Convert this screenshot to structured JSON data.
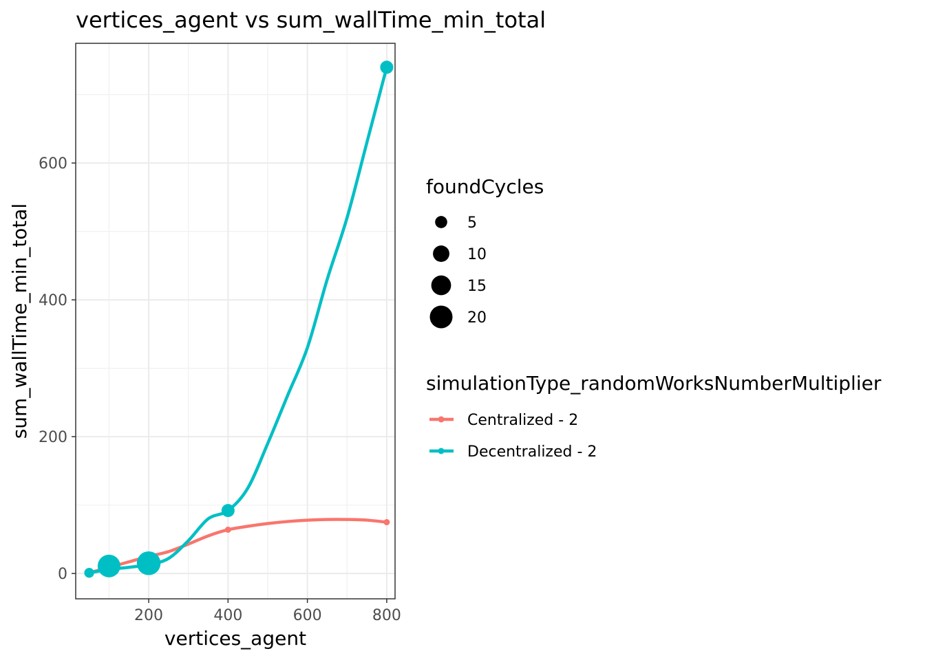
{
  "chart_data": {
    "type": "scatter",
    "title": "vertices_agent  vs  sum_wallTime_min_total",
    "xlabel": "vertices_agent",
    "ylabel": "sum_wallTime_min_total",
    "xlim": [
      16,
      821
    ],
    "ylim": [
      -37,
      775
    ],
    "x_ticks": [
      200,
      400,
      600,
      800
    ],
    "y_ticks": [
      0,
      200,
      400,
      600
    ],
    "grid": true,
    "legend_position": "right",
    "size_legend": {
      "title": "foundCycles",
      "entries": [
        {
          "label": "5",
          "value": 5
        },
        {
          "label": "10",
          "value": 10
        },
        {
          "label": "15",
          "value": 15
        },
        {
          "label": "20",
          "value": 20
        }
      ]
    },
    "color_legend": {
      "title": "simulationType_randomWorksNumberMultiplier",
      "entries": [
        "Centralized - 2",
        "Decentralized - 2"
      ]
    },
    "series": [
      {
        "name": "Centralized - 2",
        "color": "#F8766D",
        "points": [
          {
            "x": 50,
            "y": 1,
            "size": 0
          },
          {
            "x": 100,
            "y": 12,
            "size": 0
          },
          {
            "x": 200,
            "y": 24,
            "size": 0
          },
          {
            "x": 400,
            "y": 64,
            "size": 0
          },
          {
            "x": 800,
            "y": 75,
            "size": 0
          }
        ],
        "smooth": [
          [
            50,
            1
          ],
          [
            100,
            9
          ],
          [
            150,
            17
          ],
          [
            200,
            25
          ],
          [
            250,
            32
          ],
          [
            300,
            43
          ],
          [
            350,
            55
          ],
          [
            400,
            64
          ],
          [
            450,
            69
          ],
          [
            500,
            73
          ],
          [
            550,
            76
          ],
          [
            600,
            78
          ],
          [
            650,
            79
          ],
          [
            700,
            79
          ],
          [
            750,
            78
          ],
          [
            800,
            75
          ]
        ]
      },
      {
        "name": "Decentralized - 2",
        "color": "#00BFC4",
        "points": [
          {
            "x": 50,
            "y": 1,
            "size": 3
          },
          {
            "x": 100,
            "y": 11,
            "size": 20
          },
          {
            "x": 200,
            "y": 15,
            "size": 22
          },
          {
            "x": 400,
            "y": 92,
            "size": 6
          },
          {
            "x": 800,
            "y": 740,
            "size": 6
          }
        ],
        "smooth": [
          [
            50,
            1
          ],
          [
            100,
            6
          ],
          [
            150,
            9
          ],
          [
            200,
            13
          ],
          [
            250,
            22
          ],
          [
            300,
            48
          ],
          [
            350,
            80
          ],
          [
            400,
            92
          ],
          [
            450,
            125
          ],
          [
            500,
            190
          ],
          [
            550,
            260
          ],
          [
            600,
            330
          ],
          [
            650,
            430
          ],
          [
            700,
            520
          ],
          [
            750,
            630
          ],
          [
            800,
            740
          ]
        ]
      }
    ]
  }
}
